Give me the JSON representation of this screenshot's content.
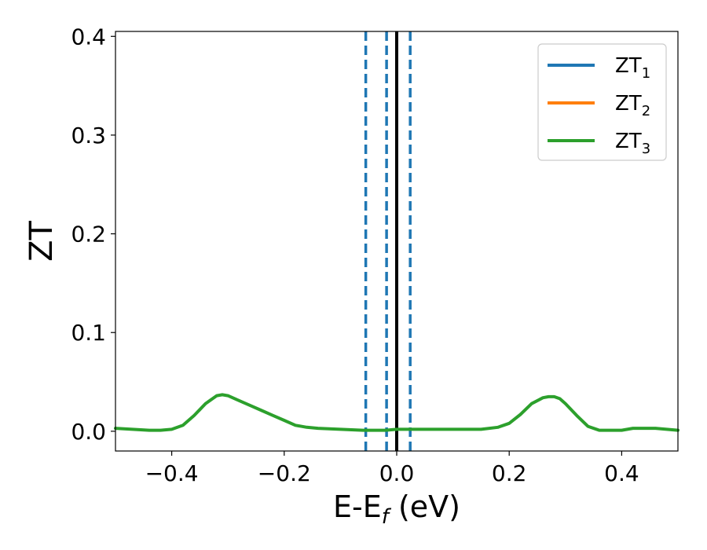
{
  "chart_data": {
    "type": "line",
    "xlabel": {
      "main": "E-E",
      "sub": "f",
      "unit": " (eV)"
    },
    "ylabel": "ZT",
    "xlim": [
      -0.5,
      0.5
    ],
    "ylim": [
      -0.02,
      0.405
    ],
    "xticks": [
      -0.4,
      -0.2,
      0.0,
      0.2,
      0.4
    ],
    "xtick_labels": [
      "−0.4",
      "−0.2",
      "0.0",
      "0.2",
      "0.4"
    ],
    "yticks": [
      0.0,
      0.1,
      0.2,
      0.3,
      0.4
    ],
    "ytick_labels": [
      "0.0",
      "0.1",
      "0.2",
      "0.3",
      "0.4"
    ],
    "grid": false,
    "legend_position": "top-right",
    "series": [
      {
        "name": "ZT",
        "sub": "1",
        "color": "#1f77b4",
        "x": [],
        "y": []
      },
      {
        "name": "ZT",
        "sub": "2",
        "color": "#ff7f0e",
        "x": [],
        "y": []
      },
      {
        "name": "ZT",
        "sub": "3",
        "color": "#2ca02c",
        "x": [
          -0.5,
          -0.47,
          -0.44,
          -0.42,
          -0.4,
          -0.38,
          -0.36,
          -0.34,
          -0.32,
          -0.31,
          -0.3,
          -0.28,
          -0.26,
          -0.24,
          -0.22,
          -0.2,
          -0.18,
          -0.16,
          -0.14,
          -0.12,
          -0.1,
          -0.08,
          -0.06,
          -0.04,
          -0.02,
          0.0,
          0.02,
          0.05,
          0.08,
          0.1,
          0.12,
          0.15,
          0.18,
          0.2,
          0.22,
          0.24,
          0.26,
          0.27,
          0.28,
          0.29,
          0.3,
          0.32,
          0.34,
          0.36,
          0.38,
          0.4,
          0.42,
          0.44,
          0.45,
          0.46,
          0.48,
          0.5
        ],
        "y": [
          0.003,
          0.002,
          0.001,
          0.001,
          0.002,
          0.006,
          0.016,
          0.028,
          0.036,
          0.037,
          0.036,
          0.031,
          0.026,
          0.021,
          0.016,
          0.011,
          0.006,
          0.004,
          0.003,
          0.0025,
          0.002,
          0.0015,
          0.001,
          0.001,
          0.001,
          0.002,
          0.002,
          0.002,
          0.002,
          0.002,
          0.002,
          0.002,
          0.004,
          0.008,
          0.017,
          0.028,
          0.034,
          0.035,
          0.035,
          0.033,
          0.028,
          0.016,
          0.005,
          0.001,
          0.001,
          0.001,
          0.003,
          0.003,
          0.003,
          0.003,
          0.002,
          0.001
        ]
      }
    ],
    "vlines": [
      {
        "x": -0.055,
        "color": "#1f77b4",
        "style": "dashed"
      },
      {
        "x": -0.018,
        "color": "#1f77b4",
        "style": "dashed"
      },
      {
        "x": 0.0,
        "color": "#000000",
        "style": "solid"
      },
      {
        "x": 0.024,
        "color": "#1f77b4",
        "style": "dashed"
      }
    ]
  }
}
